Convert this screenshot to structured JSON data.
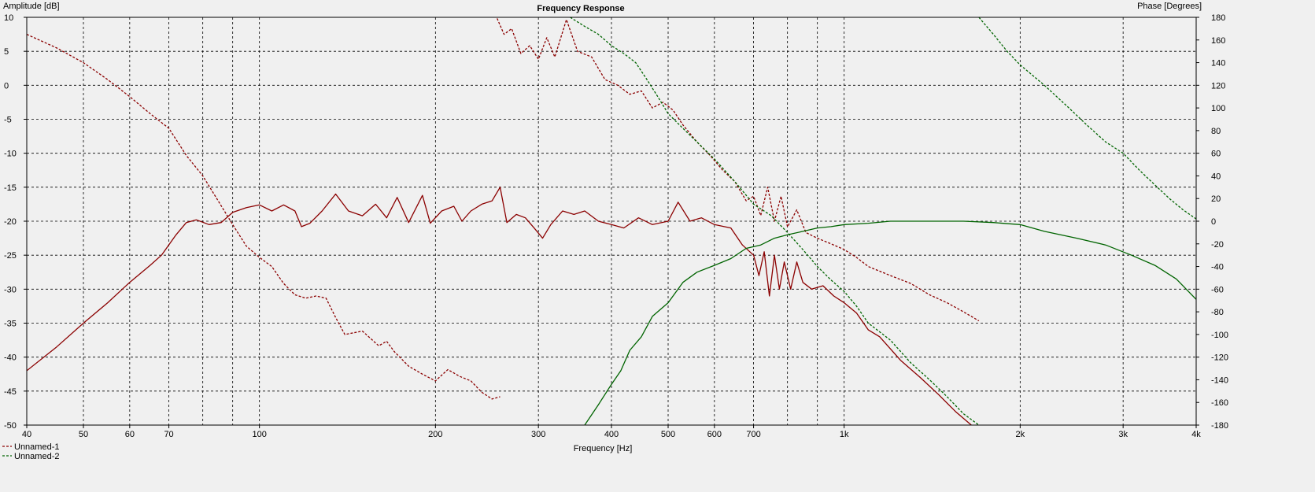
{
  "colors": {
    "unnamed1": "#8b0000",
    "unnamed2": "#006400",
    "grid": "#000000",
    "plot_bg": "#f0f0f0"
  },
  "chart_data": {
    "type": "line",
    "title": "Frequency Response",
    "xlabel": "Frequency [Hz]",
    "ylabel_left": "Amplitude [dB]",
    "ylabel_right": "Phase [Degrees]",
    "xscale": "log",
    "xlim": [
      40,
      4000
    ],
    "ylim_left": [
      -50,
      10
    ],
    "ylim_right": [
      -180,
      180
    ],
    "grid": true,
    "legend": "bottom-left",
    "x_major_ticks": [
      {
        "v": 40,
        "label": "40"
      },
      {
        "v": 50,
        "label": "50"
      },
      {
        "v": 60,
        "label": "60"
      },
      {
        "v": 70,
        "label": "70"
      },
      {
        "v": 100,
        "label": "100"
      },
      {
        "v": 200,
        "label": "200"
      },
      {
        "v": 300,
        "label": "300"
      },
      {
        "v": 400,
        "label": "400"
      },
      {
        "v": 500,
        "label": "500"
      },
      {
        "v": 600,
        "label": "600"
      },
      {
        "v": 700,
        "label": "700"
      },
      {
        "v": 1000,
        "label": "1k"
      },
      {
        "v": 2000,
        "label": "2k"
      },
      {
        "v": 3000,
        "label": "3k"
      },
      {
        "v": 4000,
        "label": "4k"
      }
    ],
    "x_minor_ticks": [
      80,
      90,
      800,
      900
    ],
    "y_left_ticks": [
      10,
      5,
      0,
      -5,
      -10,
      -15,
      -20,
      -25,
      -30,
      -35,
      -40,
      -45,
      -50
    ],
    "y_right_ticks": [
      180,
      160,
      140,
      120,
      100,
      80,
      60,
      40,
      20,
      0,
      -20,
      -40,
      -60,
      -80,
      -100,
      -120,
      -140,
      -160,
      -180
    ],
    "series": [
      {
        "name": "Unnamed-1",
        "color": "#8b0000",
        "amplitude_db": [
          [
            40,
            -42
          ],
          [
            45,
            -38.5
          ],
          [
            50,
            -35
          ],
          [
            55,
            -32
          ],
          [
            60,
            -29
          ],
          [
            65,
            -26.5
          ],
          [
            68,
            -25
          ],
          [
            72,
            -22
          ],
          [
            75,
            -20.2
          ],
          [
            78,
            -19.8
          ],
          [
            82,
            -20.5
          ],
          [
            86,
            -20.2
          ],
          [
            90,
            -18.7
          ],
          [
            95,
            -18
          ],
          [
            100,
            -17.6
          ],
          [
            105,
            -18.5
          ],
          [
            110,
            -17.6
          ],
          [
            115,
            -18.5
          ],
          [
            118,
            -20.8
          ],
          [
            122,
            -20.3
          ],
          [
            128,
            -18.5
          ],
          [
            135,
            -16
          ],
          [
            142,
            -18.5
          ],
          [
            150,
            -19.2
          ],
          [
            158,
            -17.5
          ],
          [
            165,
            -19.5
          ],
          [
            172,
            -16.5
          ],
          [
            180,
            -20.2
          ],
          [
            190,
            -16.2
          ],
          [
            196,
            -20.3
          ],
          [
            205,
            -18.5
          ],
          [
            215,
            -17.8
          ],
          [
            222,
            -20
          ],
          [
            230,
            -18.5
          ],
          [
            240,
            -17.5
          ],
          [
            250,
            -17
          ],
          [
            258,
            -15
          ],
          [
            265,
            -20.2
          ],
          [
            275,
            -19
          ],
          [
            285,
            -19.5
          ],
          [
            295,
            -21
          ],
          [
            305,
            -22.5
          ],
          [
            315,
            -20.5
          ],
          [
            330,
            -18.5
          ],
          [
            345,
            -19
          ],
          [
            360,
            -18.5
          ],
          [
            380,
            -20
          ],
          [
            400,
            -20.5
          ],
          [
            420,
            -21
          ],
          [
            445,
            -19.5
          ],
          [
            470,
            -20.5
          ],
          [
            500,
            -20
          ],
          [
            520,
            -17.2
          ],
          [
            545,
            -20
          ],
          [
            570,
            -19.5
          ],
          [
            600,
            -20.5
          ],
          [
            640,
            -21
          ],
          [
            670,
            -23.5
          ],
          [
            700,
            -25
          ],
          [
            715,
            -28
          ],
          [
            730,
            -24.5
          ],
          [
            745,
            -31
          ],
          [
            760,
            -25
          ],
          [
            775,
            -30
          ],
          [
            790,
            -26
          ],
          [
            810,
            -30
          ],
          [
            830,
            -26
          ],
          [
            850,
            -29
          ],
          [
            880,
            -30
          ],
          [
            920,
            -29.5
          ],
          [
            960,
            -31
          ],
          [
            1000,
            -32
          ],
          [
            1050,
            -33.5
          ],
          [
            1100,
            -36
          ],
          [
            1150,
            -37
          ],
          [
            1250,
            -40.5
          ],
          [
            1350,
            -43
          ],
          [
            1450,
            -45.5
          ],
          [
            1550,
            -48
          ],
          [
            1650,
            -50
          ]
        ],
        "phase_deg": [
          [
            40,
            165
          ],
          [
            45,
            153
          ],
          [
            50,
            140
          ],
          [
            55,
            125
          ],
          [
            60,
            110
          ],
          [
            65,
            95
          ],
          [
            70,
            82
          ],
          [
            75,
            58
          ],
          [
            80,
            40
          ],
          [
            85,
            18
          ],
          [
            90,
            -3
          ],
          [
            95,
            -22
          ],
          [
            100,
            -32
          ],
          [
            105,
            -40
          ],
          [
            110,
            -55
          ],
          [
            115,
            -65
          ],
          [
            120,
            -68
          ],
          [
            125,
            -66
          ],
          [
            130,
            -68
          ],
          [
            135,
            -85
          ],
          [
            140,
            -100
          ],
          [
            150,
            -97
          ],
          [
            160,
            -110
          ],
          [
            165,
            -106
          ],
          [
            170,
            -115
          ],
          [
            180,
            -128
          ],
          [
            190,
            -135
          ],
          [
            200,
            -141
          ],
          [
            210,
            -131
          ],
          [
            220,
            -137
          ],
          [
            230,
            -141
          ],
          [
            240,
            -151
          ],
          [
            250,
            -157
          ],
          [
            258,
            -155
          ]
        ],
        "phase_deg_wrapped": [
          [
            255,
            179
          ],
          [
            262,
            165
          ],
          [
            270,
            170
          ],
          [
            280,
            148
          ],
          [
            290,
            155
          ],
          [
            300,
            143
          ],
          [
            310,
            162
          ],
          [
            320,
            145
          ],
          [
            335,
            178
          ],
          [
            350,
            150
          ],
          [
            370,
            145
          ],
          [
            390,
            125
          ],
          [
            410,
            120
          ],
          [
            430,
            112
          ],
          [
            450,
            115
          ],
          [
            470,
            100
          ],
          [
            490,
            105
          ],
          [
            510,
            98
          ],
          [
            530,
            85
          ],
          [
            560,
            70
          ],
          [
            590,
            58
          ],
          [
            620,
            45
          ],
          [
            650,
            35
          ],
          [
            680,
            18
          ],
          [
            700,
            22
          ],
          [
            720,
            5
          ],
          [
            740,
            30
          ],
          [
            760,
            0
          ],
          [
            780,
            22
          ],
          [
            800,
            -5
          ],
          [
            830,
            10
          ],
          [
            860,
            -10
          ],
          [
            900,
            -15
          ],
          [
            950,
            -20
          ],
          [
            1000,
            -25
          ],
          [
            1050,
            -32
          ],
          [
            1100,
            -40
          ],
          [
            1200,
            -48
          ],
          [
            1300,
            -55
          ],
          [
            1400,
            -65
          ],
          [
            1500,
            -72
          ],
          [
            1600,
            -80
          ],
          [
            1700,
            -88
          ]
        ]
      },
      {
        "name": "Unnamed-2",
        "color": "#006400",
        "amplitude_db": [
          [
            360,
            -50
          ],
          [
            380,
            -47
          ],
          [
            400,
            -44
          ],
          [
            415,
            -42
          ],
          [
            430,
            -39
          ],
          [
            450,
            -37
          ],
          [
            470,
            -34
          ],
          [
            500,
            -32
          ],
          [
            530,
            -29
          ],
          [
            560,
            -27.5
          ],
          [
            600,
            -26.5
          ],
          [
            640,
            -25.5
          ],
          [
            680,
            -24
          ],
          [
            720,
            -23.5
          ],
          [
            760,
            -22.5
          ],
          [
            800,
            -22
          ],
          [
            850,
            -21.5
          ],
          [
            900,
            -21
          ],
          [
            950,
            -20.8
          ],
          [
            1000,
            -20.5
          ],
          [
            1100,
            -20.3
          ],
          [
            1200,
            -20
          ],
          [
            1400,
            -20
          ],
          [
            1600,
            -20
          ],
          [
            1800,
            -20.2
          ],
          [
            2000,
            -20.5
          ],
          [
            2200,
            -21.5
          ],
          [
            2500,
            -22.5
          ],
          [
            2800,
            -23.5
          ],
          [
            3100,
            -25
          ],
          [
            3400,
            -26.5
          ],
          [
            3700,
            -28.5
          ],
          [
            4000,
            -31.5
          ]
        ],
        "phase_deg": [
          [
            340,
            180
          ],
          [
            360,
            172
          ],
          [
            380,
            165
          ],
          [
            400,
            155
          ],
          [
            420,
            148
          ],
          [
            440,
            140
          ],
          [
            460,
            125
          ],
          [
            480,
            110
          ],
          [
            500,
            95
          ],
          [
            530,
            82
          ],
          [
            560,
            70
          ],
          [
            600,
            55
          ],
          [
            650,
            35
          ],
          [
            700,
            15
          ],
          [
            750,
            5
          ],
          [
            800,
            -10
          ],
          [
            850,
            -25
          ],
          [
            900,
            -40
          ],
          [
            950,
            -52
          ],
          [
            1000,
            -62
          ],
          [
            1050,
            -75
          ],
          [
            1100,
            -90
          ],
          [
            1200,
            -105
          ],
          [
            1300,
            -125
          ],
          [
            1400,
            -140
          ],
          [
            1500,
            -155
          ],
          [
            1600,
            -170
          ],
          [
            1700,
            -180
          ]
        ],
        "phase_deg_wrapped": [
          [
            1700,
            180
          ],
          [
            1800,
            165
          ],
          [
            1900,
            150
          ],
          [
            2000,
            138
          ],
          [
            2200,
            120
          ],
          [
            2400,
            102
          ],
          [
            2600,
            85
          ],
          [
            2800,
            70
          ],
          [
            3000,
            60
          ],
          [
            3200,
            45
          ],
          [
            3400,
            32
          ],
          [
            3600,
            20
          ],
          [
            3800,
            10
          ],
          [
            4000,
            2
          ]
        ]
      }
    ]
  }
}
